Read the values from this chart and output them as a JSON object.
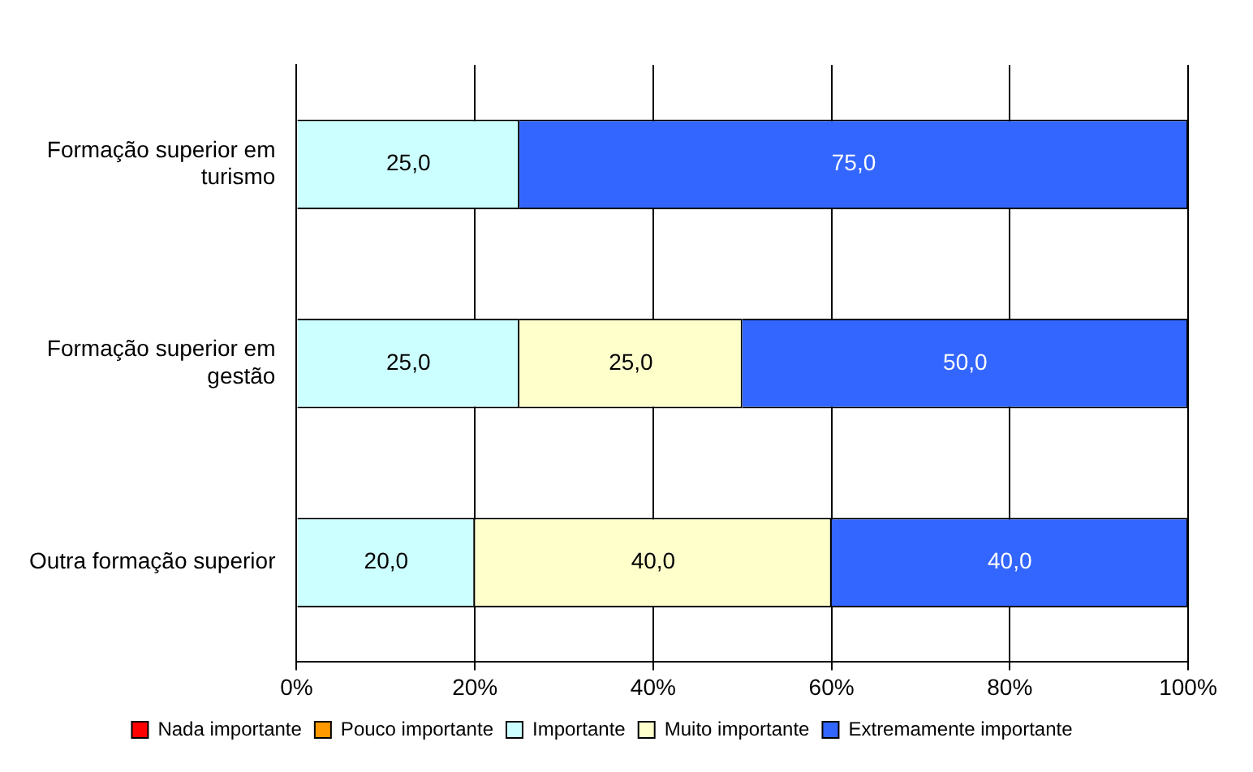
{
  "chart_data": {
    "type": "bar",
    "orientation": "horizontal",
    "stacked": true,
    "categories": [
      "Formação superior em turismo",
      "Formação superior em gestão",
      "Outra formação superior"
    ],
    "series": [
      {
        "name": "Nada importante",
        "color": "#ff0000",
        "values": [
          0,
          0,
          0
        ],
        "value_labels": [
          null,
          null,
          null
        ]
      },
      {
        "name": "Pouco importante",
        "color": "#ff9900",
        "values": [
          0,
          0,
          0
        ],
        "value_labels": [
          null,
          null,
          null
        ]
      },
      {
        "name": "Importante",
        "color": "#ccffff",
        "values": [
          25,
          25,
          20
        ],
        "value_labels": [
          "25,0",
          "25,0",
          "20,0"
        ]
      },
      {
        "name": "Muito importante",
        "color": "#ffffcc",
        "values": [
          0,
          25,
          40
        ],
        "value_labels": [
          null,
          "25,0",
          "40,0"
        ]
      },
      {
        "name": "Extremamente importante",
        "color": "#3366ff",
        "values": [
          75,
          50,
          40
        ],
        "value_labels": [
          "75,0",
          "50,0",
          "40,0"
        ]
      }
    ],
    "xlim": [
      0,
      100
    ],
    "xticks": [
      {
        "value": 0,
        "label": "0%"
      },
      {
        "value": 20,
        "label": "20%"
      },
      {
        "value": 40,
        "label": "40%"
      },
      {
        "value": 60,
        "label": "60%"
      },
      {
        "value": 80,
        "label": "80%"
      },
      {
        "value": 100,
        "label": "100%"
      }
    ],
    "grid": "x",
    "legend": "bottom"
  }
}
